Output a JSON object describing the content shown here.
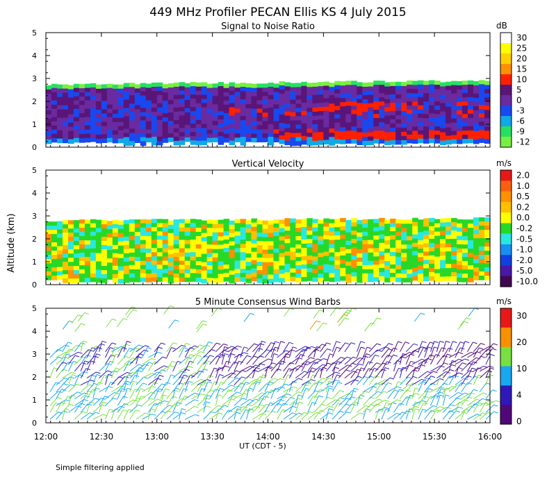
{
  "figure": {
    "title": "449 MHz Profiler PECAN Ellis KS   4 July 2015",
    "ylabel": "Altitude (km)",
    "xlabel": "UT  (CDT - 5)",
    "footnote": "Simple filtering applied"
  },
  "chart_data": [
    {
      "type": "heatmap",
      "title": "Signal to Noise Ratio",
      "xlabel": "UT  (CDT - 5)",
      "ylabel": "Altitude (km)",
      "x_ticks": [
        "12:00",
        "12:30",
        "13:00",
        "13:30",
        "14:00",
        "14:30",
        "15:00",
        "15:30",
        "16:00"
      ],
      "y_ticks": [
        0,
        1,
        2,
        3,
        4,
        5
      ],
      "ylim": [
        0,
        5
      ],
      "data_top_km": [
        2.75,
        2.9
      ],
      "colorbar": {
        "unit": "dB",
        "labels": [
          "30",
          "25",
          "20",
          "15",
          "10",
          "5",
          "0",
          "-3",
          "-6",
          "-9",
          "-12"
        ],
        "colors": [
          "#ffffff",
          "#ffff00",
          "#ffd000",
          "#ff9000",
          "#ff2000",
          "#5a1578",
          "#6a2aa0",
          "#1848f0",
          "#10a8e8",
          "#28e060",
          "#78f040"
        ]
      }
    },
    {
      "type": "heatmap",
      "title": "Vertical Velocity",
      "xlabel": "UT  (CDT - 5)",
      "ylabel": "Altitude (km)",
      "x_ticks": [
        "12:00",
        "12:30",
        "13:00",
        "13:30",
        "14:00",
        "14:30",
        "15:00",
        "15:30",
        "16:00"
      ],
      "y_ticks": [
        0,
        1,
        2,
        3,
        4,
        5
      ],
      "ylim": [
        0,
        5
      ],
      "data_top_km": [
        2.8,
        2.9
      ],
      "colorbar": {
        "unit": "m/s",
        "labels": [
          "2.0",
          "1.0",
          "0.5",
          "0.2",
          "0.0",
          "-0.2",
          "-0.5",
          "-1.0",
          "-2.0",
          "-5.0",
          "-10.0"
        ],
        "colors": [
          "#e81818",
          "#f86010",
          "#ff9000",
          "#ffc000",
          "#ffff00",
          "#28d828",
          "#28e8e0",
          "#1890f0",
          "#1040e0",
          "#4818a8",
          "#400850"
        ]
      }
    },
    {
      "type": "scatter",
      "title": "5 Minute Consensus Wind Barbs",
      "xlabel": "UT  (CDT - 5)",
      "ylabel": "Altitude (km)",
      "x_ticks": [
        "12:00",
        "12:30",
        "13:00",
        "13:30",
        "14:00",
        "14:30",
        "15:00",
        "15:30",
        "16:00"
      ],
      "y_ticks": [
        0,
        1,
        2,
        3,
        4,
        5
      ],
      "ylim": [
        0,
        5
      ],
      "colorbar": {
        "unit": "m/s",
        "labels": [
          "30",
          "20",
          "10",
          "4",
          "0"
        ],
        "colors": [
          "#e81818",
          "#f89000",
          "#78e040",
          "#18a8f0",
          "#3018b8",
          "#500878"
        ]
      }
    }
  ]
}
